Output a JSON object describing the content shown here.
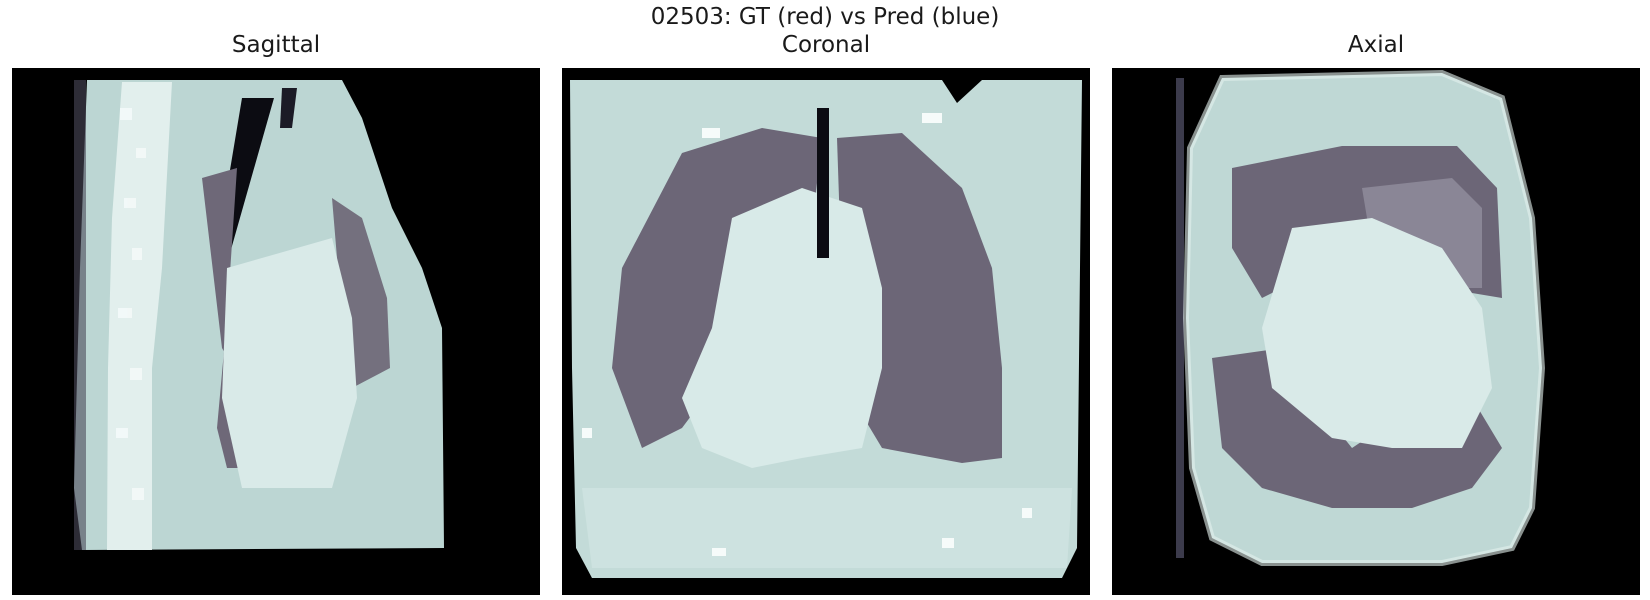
{
  "figure": {
    "suptitle": "02503: GT (red) vs Pred (blue)",
    "colormap": "bone",
    "colors": {
      "background": "#000000",
      "soft_tissue": "#cfe3e1",
      "bright_tissue": "#e6f1ef",
      "lung": "#6e6878",
      "bone": "#f2f8f7"
    }
  },
  "panels": [
    {
      "title": "Sagittal",
      "view": "sagittal"
    },
    {
      "title": "Coronal",
      "view": "coronal"
    },
    {
      "title": "Axial",
      "view": "axial"
    }
  ]
}
